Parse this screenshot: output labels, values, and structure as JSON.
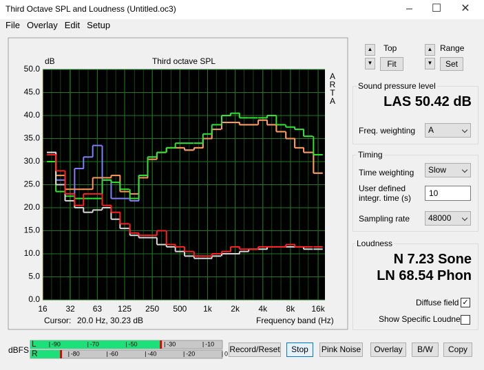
{
  "window": {
    "title": "Third Octave SPL and Loudness (Untitled.oc3)",
    "menu": [
      "File",
      "Overlay",
      "Edit",
      "Setup"
    ]
  },
  "chart_data": {
    "type": "step",
    "title": "Third octave SPL",
    "ylabel": "dB",
    "xlabel": "Frequency band (Hz)",
    "side_label": "ARTA",
    "cursor_label": "Cursor:",
    "cursor_value": "20.0 Hz, 30.23 dB",
    "x": [
      20,
      25,
      31.5,
      40,
      50,
      63,
      80,
      100,
      125,
      160,
      200,
      250,
      315,
      400,
      500,
      630,
      800,
      1000,
      1250,
      1600,
      2000,
      2500,
      3150,
      4000,
      5000,
      6300,
      8000,
      10000,
      12500,
      16000
    ],
    "xlog": true,
    "xlim": [
      16,
      19000
    ],
    "xticks": [
      16,
      32,
      63,
      125,
      250,
      500,
      {
        "value": 1000,
        "label": "1k"
      },
      {
        "value": 2000,
        "label": "2k"
      },
      {
        "value": 4000,
        "label": "4k"
      },
      {
        "value": 8000,
        "label": "8k"
      },
      {
        "value": 16000,
        "label": "16k"
      }
    ],
    "ylim": [
      0,
      50
    ],
    "yticks": [
      {
        "value": 0,
        "label": "0.0"
      },
      {
        "value": 5,
        "label": "5.0"
      },
      {
        "value": 10,
        "label": "10.0"
      },
      {
        "value": 15,
        "label": "15.0"
      },
      {
        "value": 20,
        "label": "20.0"
      },
      {
        "value": 25,
        "label": "25.0"
      },
      {
        "value": 30,
        "label": "30.0"
      },
      {
        "value": 35,
        "label": "35.0"
      },
      {
        "value": 40,
        "label": "40.0"
      },
      {
        "value": 45,
        "label": "45.0"
      },
      {
        "value": 50,
        "label": "50.0"
      }
    ],
    "grid": true,
    "background": "#000000",
    "grid_color": "#1f7a1f",
    "series": [
      {
        "color": "#7f7fff",
        "values": [
          32,
          26,
          23,
          28.5,
          31,
          33.5,
          26,
          22,
          22,
          21.5,
          27,
          31,
          32,
          33,
          33,
          32.5,
          33,
          35,
          37,
          38.5,
          38.5,
          38,
          38,
          39,
          38,
          36.5,
          35,
          33,
          32,
          27.5
        ]
      },
      {
        "color": "#ff9955",
        "values": [
          32,
          27,
          24,
          24,
          24,
          26.5,
          26.5,
          27,
          23.5,
          23,
          26.5,
          30.5,
          32,
          33,
          33,
          32.5,
          33,
          35,
          37,
          38.5,
          38.5,
          38,
          38,
          39,
          38,
          36.5,
          35,
          33,
          32,
          27.5
        ]
      },
      {
        "color": "#2ee62e",
        "values": [
          30,
          23.5,
          22.5,
          22,
          22,
          22,
          26,
          25.5,
          24,
          22,
          27,
          31,
          32,
          33,
          34,
          34,
          34,
          36,
          38,
          40,
          40.5,
          39.5,
          39.5,
          39.5,
          40,
          38,
          37.5,
          37,
          35.5,
          31.5
        ]
      },
      {
        "color": "#d8d8d8",
        "values": [
          32,
          25,
          21.5,
          20,
          19,
          19.5,
          20,
          17.5,
          15.5,
          14,
          13.5,
          13.5,
          12,
          11.5,
          10.5,
          9.5,
          9,
          9,
          9.5,
          10,
          10,
          10.5,
          11,
          11,
          11.5,
          11.5,
          11.5,
          11.5,
          11,
          11
        ]
      },
      {
        "color": "#ff2020",
        "values": [
          31.5,
          28,
          23,
          20.5,
          23,
          23,
          20.5,
          19,
          16.5,
          14.5,
          14,
          14,
          15,
          12,
          11.5,
          10.5,
          9.5,
          9.5,
          10,
          10.5,
          11.5,
          11,
          11,
          11.5,
          11.5,
          11.5,
          12,
          11.5,
          11.5,
          11.5
        ]
      }
    ]
  },
  "controls": {
    "top": "Top",
    "fit": "Fit",
    "range": "Range",
    "set": "Set",
    "spl_group": "Sound pressure level",
    "spl_value": "LAS 50.42 dB",
    "freq_weighting": "Freq. weighting",
    "freq_weighting_value": "A",
    "timing_group": "Timing",
    "time_weighting": "Time weighting",
    "time_weighting_value": "Slow",
    "integr_line1": "User defined",
    "integr_line2": "integr. time (s)",
    "integr_value": "10",
    "sampling_rate": "Sampling rate",
    "sampling_rate_value": "48000",
    "loudness_group": "Loudness",
    "loudness_n": "N 7.23 Sone",
    "loudness_ln": "LN 68.54 Phon",
    "diffuse_field": "Diffuse field",
    "diffuse_checked": true,
    "show_specific": "Show Specific Loudness",
    "show_specific_checked": false
  },
  "meter": {
    "label": "dBFS",
    "xlim": [
      -100,
      0
    ],
    "rows": [
      {
        "label": "L",
        "level": -32,
        "ticks": [
          -90,
          -70,
          -50,
          -30,
          -10
        ]
      },
      {
        "label": "R",
        "level": -84,
        "ticks": [
          -80,
          -60,
          -40,
          -20,
          0
        ]
      }
    ]
  },
  "buttons": [
    "Record/Reset",
    "Stop",
    "Pink Noise",
    "Overlay",
    "B/W",
    "Copy"
  ]
}
